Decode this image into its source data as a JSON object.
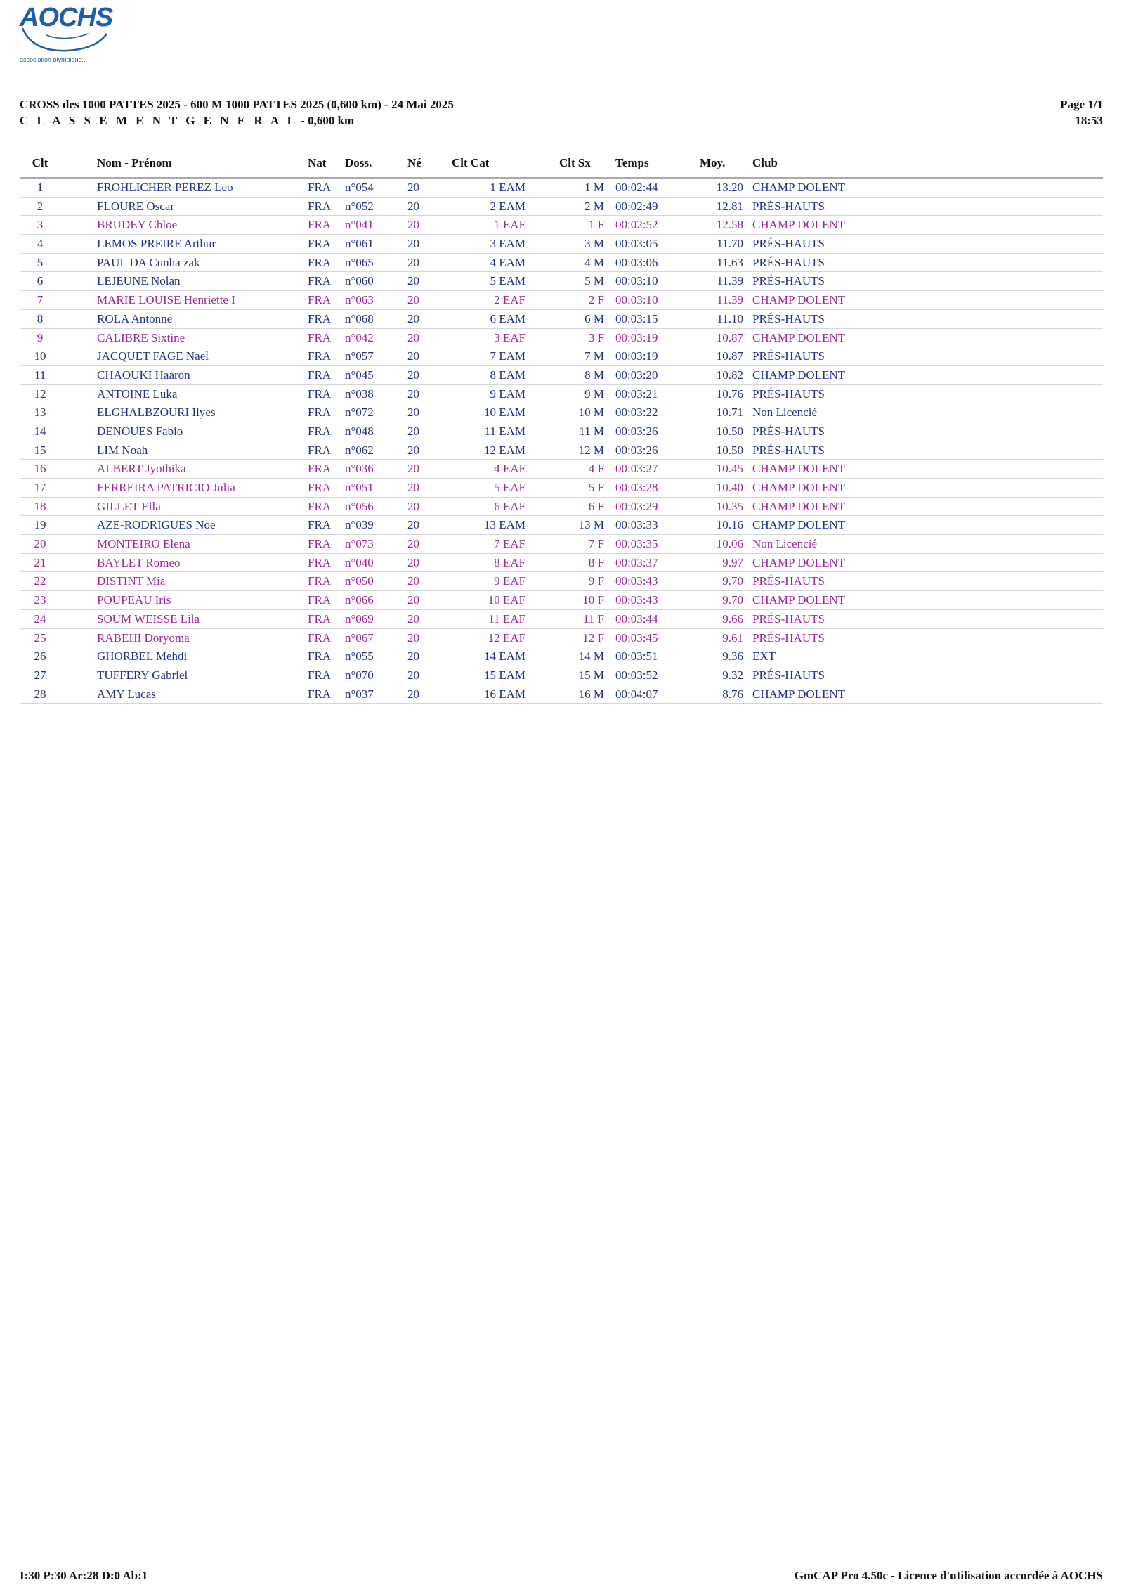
{
  "logo": {
    "text": "AOCHS",
    "subtext": "association olympique..."
  },
  "header": {
    "title": "CROSS des 1000 PATTES 2025 - 600 M 1000 PATTES 2025 (0,600 km) - 24 Mai 2025",
    "subtitle_spaced": "C L A S S E M E N T    G E N E R A L",
    "subtitle_rest": " - 0,600 km",
    "page": "Page 1/1",
    "time": "18:53"
  },
  "columns": {
    "clt": "Clt",
    "name": "Nom - Prénom",
    "nat": "Nat",
    "doss": "Doss.",
    "ne": "Né",
    "cltcat": "Clt Cat",
    "cltsx": "Clt Sx",
    "temps": "Temps",
    "moy": "Moy.",
    "club": "Club"
  },
  "rows": [
    {
      "clt": "1",
      "name": "FROHLICHER PEREZ Leo",
      "nat": "FRA",
      "doss": "n°054",
      "ne": "20",
      "cltcat": "1 EAM",
      "cltsx": "1 M",
      "temps": "00:02:44",
      "moy": "13.20",
      "club": "CHAMP DOLENT",
      "sex": "M"
    },
    {
      "clt": "2",
      "name": "FLOURE Oscar",
      "nat": "FRA",
      "doss": "n°052",
      "ne": "20",
      "cltcat": "2 EAM",
      "cltsx": "2 M",
      "temps": "00:02:49",
      "moy": "12.81",
      "club": "PRÉS-HAUTS",
      "sex": "M"
    },
    {
      "clt": "3",
      "name": "BRUDEY Chloe",
      "nat": "FRA",
      "doss": "n°041",
      "ne": "20",
      "cltcat": "1 EAF",
      "cltsx": "1 F",
      "temps": "00:02:52",
      "moy": "12.58",
      "club": "CHAMP DOLENT",
      "sex": "F"
    },
    {
      "clt": "4",
      "name": "LEMOS PREIRE Arthur",
      "nat": "FRA",
      "doss": "n°061",
      "ne": "20",
      "cltcat": "3 EAM",
      "cltsx": "3 M",
      "temps": "00:03:05",
      "moy": "11.70",
      "club": "PRÉS-HAUTS",
      "sex": "M"
    },
    {
      "clt": "5",
      "name": "PAUL DA Cunha zak",
      "nat": "FRA",
      "doss": "n°065",
      "ne": "20",
      "cltcat": "4 EAM",
      "cltsx": "4 M",
      "temps": "00:03:06",
      "moy": "11.63",
      "club": "PRÉS-HAUTS",
      "sex": "M"
    },
    {
      "clt": "6",
      "name": "LEJEUNE Nolan",
      "nat": "FRA",
      "doss": "n°060",
      "ne": "20",
      "cltcat": "5 EAM",
      "cltsx": "5 M",
      "temps": "00:03:10",
      "moy": "11.39",
      "club": "PRÉS-HAUTS",
      "sex": "M"
    },
    {
      "clt": "7",
      "name": "MARIE LOUISE Henriette I",
      "nat": "FRA",
      "doss": "n°063",
      "ne": "20",
      "cltcat": "2 EAF",
      "cltsx": "2 F",
      "temps": "00:03:10",
      "moy": "11.39",
      "club": "CHAMP DOLENT",
      "sex": "F"
    },
    {
      "clt": "8",
      "name": "ROLA Antonne",
      "nat": "FRA",
      "doss": "n°068",
      "ne": "20",
      "cltcat": "6 EAM",
      "cltsx": "6 M",
      "temps": "00:03:15",
      "moy": "11.10",
      "club": "PRÉS-HAUTS",
      "sex": "M"
    },
    {
      "clt": "9",
      "name": "CALIBRE Sixtine",
      "nat": "FRA",
      "doss": "n°042",
      "ne": "20",
      "cltcat": "3 EAF",
      "cltsx": "3 F",
      "temps": "00:03:19",
      "moy": "10.87",
      "club": "CHAMP DOLENT",
      "sex": "F"
    },
    {
      "clt": "10",
      "name": "JACQUET FAGE Nael",
      "nat": "FRA",
      "doss": "n°057",
      "ne": "20",
      "cltcat": "7 EAM",
      "cltsx": "7 M",
      "temps": "00:03:19",
      "moy": "10.87",
      "club": "PRÉS-HAUTS",
      "sex": "M"
    },
    {
      "clt": "11",
      "name": "CHAOUKI Haaron",
      "nat": "FRA",
      "doss": "n°045",
      "ne": "20",
      "cltcat": "8 EAM",
      "cltsx": "8 M",
      "temps": "00:03:20",
      "moy": "10.82",
      "club": "CHAMP DOLENT",
      "sex": "M"
    },
    {
      "clt": "12",
      "name": "ANTOINE Luka",
      "nat": "FRA",
      "doss": "n°038",
      "ne": "20",
      "cltcat": "9 EAM",
      "cltsx": "9 M",
      "temps": "00:03:21",
      "moy": "10.76",
      "club": "PRÉS-HAUTS",
      "sex": "M"
    },
    {
      "clt": "13",
      "name": "ELGHALBZOURI Ilyes",
      "nat": "FRA",
      "doss": "n°072",
      "ne": "20",
      "cltcat": "10 EAM",
      "cltsx": "10 M",
      "temps": "00:03:22",
      "moy": "10.71",
      "club": "Non Licencié",
      "sex": "M"
    },
    {
      "clt": "14",
      "name": "DENOUES Fabio",
      "nat": "FRA",
      "doss": "n°048",
      "ne": "20",
      "cltcat": "11 EAM",
      "cltsx": "11 M",
      "temps": "00:03:26",
      "moy": "10.50",
      "club": "PRÉS-HAUTS",
      "sex": "M"
    },
    {
      "clt": "15",
      "name": "LIM Noah",
      "nat": "FRA",
      "doss": "n°062",
      "ne": "20",
      "cltcat": "12 EAM",
      "cltsx": "12 M",
      "temps": "00:03:26",
      "moy": "10.50",
      "club": "PRÉS-HAUTS",
      "sex": "M"
    },
    {
      "clt": "16",
      "name": "ALBERT Jyothika",
      "nat": "FRA",
      "doss": "n°036",
      "ne": "20",
      "cltcat": "4 EAF",
      "cltsx": "4 F",
      "temps": "00:03:27",
      "moy": "10.45",
      "club": "CHAMP DOLENT",
      "sex": "F"
    },
    {
      "clt": "17",
      "name": "FERREIRA PATRICIO Julia",
      "nat": "FRA",
      "doss": "n°051",
      "ne": "20",
      "cltcat": "5 EAF",
      "cltsx": "5 F",
      "temps": "00:03:28",
      "moy": "10.40",
      "club": "CHAMP DOLENT",
      "sex": "F"
    },
    {
      "clt": "18",
      "name": "GILLET Ella",
      "nat": "FRA",
      "doss": "n°056",
      "ne": "20",
      "cltcat": "6 EAF",
      "cltsx": "6 F",
      "temps": "00:03:29",
      "moy": "10.35",
      "club": "CHAMP DOLENT",
      "sex": "F"
    },
    {
      "clt": "19",
      "name": "AZE-RODRIGUES Noe",
      "nat": "FRA",
      "doss": "n°039",
      "ne": "20",
      "cltcat": "13 EAM",
      "cltsx": "13 M",
      "temps": "00:03:33",
      "moy": "10.16",
      "club": "CHAMP DOLENT",
      "sex": "M"
    },
    {
      "clt": "20",
      "name": "MONTEIRO Elena",
      "nat": "FRA",
      "doss": "n°073",
      "ne": "20",
      "cltcat": "7 EAF",
      "cltsx": "7 F",
      "temps": "00:03:35",
      "moy": "10.06",
      "club": "Non Licencié",
      "sex": "F"
    },
    {
      "clt": "21",
      "name": "BAYLET Romeo",
      "nat": "FRA",
      "doss": "n°040",
      "ne": "20",
      "cltcat": "8 EAF",
      "cltsx": "8 F",
      "temps": "00:03:37",
      "moy": "9.97",
      "club": "CHAMP DOLENT",
      "sex": "F"
    },
    {
      "clt": "22",
      "name": "DISTINT Mia",
      "nat": "FRA",
      "doss": "n°050",
      "ne": "20",
      "cltcat": "9 EAF",
      "cltsx": "9 F",
      "temps": "00:03:43",
      "moy": "9.70",
      "club": "PRÉS-HAUTS",
      "sex": "F"
    },
    {
      "clt": "23",
      "name": "POUPEAU Iris",
      "nat": "FRA",
      "doss": "n°066",
      "ne": "20",
      "cltcat": "10 EAF",
      "cltsx": "10 F",
      "temps": "00:03:43",
      "moy": "9.70",
      "club": "CHAMP DOLENT",
      "sex": "F"
    },
    {
      "clt": "24",
      "name": "SOUM WEISSE Lila",
      "nat": "FRA",
      "doss": "n°069",
      "ne": "20",
      "cltcat": "11 EAF",
      "cltsx": "11 F",
      "temps": "00:03:44",
      "moy": "9.66",
      "club": "PRÉS-HAUTS",
      "sex": "F"
    },
    {
      "clt": "25",
      "name": "RABEHI Doryoma",
      "nat": "FRA",
      "doss": "n°067",
      "ne": "20",
      "cltcat": "12 EAF",
      "cltsx": "12 F",
      "temps": "00:03:45",
      "moy": "9.61",
      "club": "PRÉS-HAUTS",
      "sex": "F"
    },
    {
      "clt": "26",
      "name": "GHORBEL Mehdi",
      "nat": "FRA",
      "doss": "n°055",
      "ne": "20",
      "cltcat": "14 EAM",
      "cltsx": "14 M",
      "temps": "00:03:51",
      "moy": "9.36",
      "club": "EXT",
      "sex": "M"
    },
    {
      "clt": "27",
      "name": "TUFFERY Gabriel",
      "nat": "FRA",
      "doss": "n°070",
      "ne": "20",
      "cltcat": "15 EAM",
      "cltsx": "15 M",
      "temps": "00:03:52",
      "moy": "9.32",
      "club": "PRÉS-HAUTS",
      "sex": "M"
    },
    {
      "clt": "28",
      "name": "AMY Lucas",
      "nat": "FRA",
      "doss": "n°037",
      "ne": "20",
      "cltcat": "16 EAM",
      "cltsx": "16 M",
      "temps": "00:04:07",
      "moy": "8.76",
      "club": "CHAMP DOLENT",
      "sex": "M"
    }
  ],
  "colors": {
    "male": "#1e2f8c",
    "female": "#a0239a",
    "logo": "#1f5fa8"
  },
  "footer": {
    "left": "I:30 P:30 Ar:28 D:0 Ab:1",
    "right": "GmCAP Pro 4.50c - Licence d'utilisation accordée à AOCHS"
  }
}
